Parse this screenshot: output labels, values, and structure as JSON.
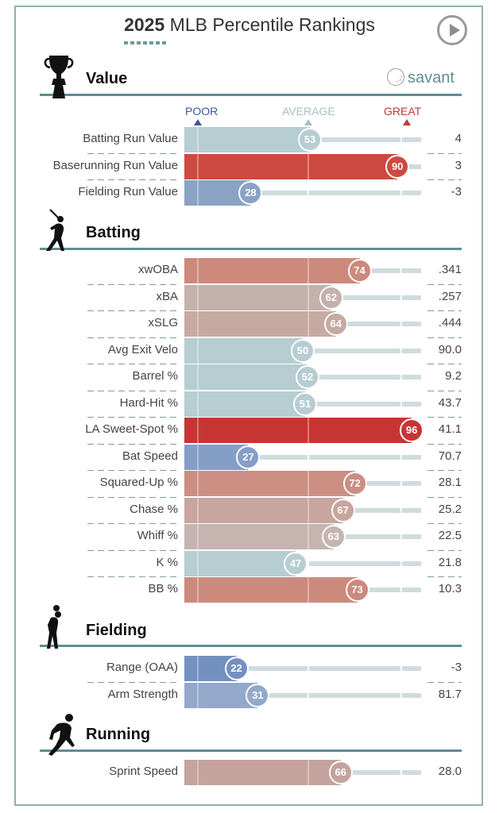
{
  "header": {
    "title_year": "2025",
    "title_rest": " MLB Percentile Rankings",
    "play_button": "play-icon",
    "brand": "savant"
  },
  "legend": {
    "poor": "POOR",
    "average": "AVERAGE",
    "great": "GREAT"
  },
  "colors": {
    "poor_label": "#3b5a9a",
    "average_label": "#a9bfc4",
    "great_label": "#c0393b",
    "section_rule": "#5e8e92"
  },
  "chart_data": {
    "type": "bar",
    "title": "2025 MLB Percentile Rankings",
    "xlabel": "Percentile",
    "xlim": [
      0,
      100
    ],
    "legend": [
      "POOR",
      "AVERAGE",
      "GREAT"
    ],
    "sections": [
      {
        "name": "Value",
        "icon": "trophy-icon",
        "metrics": [
          {
            "label": "Batting Run Value",
            "percentile": 53,
            "value": "4",
            "color": "#b6cdd1"
          },
          {
            "label": "Baserunning Run Value",
            "percentile": 90,
            "value": "3",
            "color": "#cc4a40"
          },
          {
            "label": "Fielding Run Value",
            "percentile": 28,
            "value": "-3",
            "color": "#8aa2c4"
          }
        ]
      },
      {
        "name": "Batting",
        "icon": "batter-icon",
        "metrics": [
          {
            "label": "xwOBA",
            "percentile": 74,
            "value": ".341",
            "color": "#cd897c"
          },
          {
            "label": "xBA",
            "percentile": 62,
            "value": ".257",
            "color": "#c4b1ab"
          },
          {
            "label": "xSLG",
            "percentile": 64,
            "value": ".444",
            "color": "#c6aaa2"
          },
          {
            "label": "Avg Exit Velo",
            "percentile": 50,
            "value": "90.0",
            "color": "#b6cdd1"
          },
          {
            "label": "Barrel %",
            "percentile": 52,
            "value": "9.2",
            "color": "#b6cdd1"
          },
          {
            "label": "Hard-Hit %",
            "percentile": 51,
            "value": "43.7",
            "color": "#b6cdd1"
          },
          {
            "label": "LA Sweet-Spot %",
            "percentile": 96,
            "value": "41.1",
            "color": "#c73533"
          },
          {
            "label": "Bat Speed",
            "percentile": 27,
            "value": "70.7",
            "color": "#849ec6"
          },
          {
            "label": "Squared-Up %",
            "percentile": 72,
            "value": "28.1",
            "color": "#cc8e83"
          },
          {
            "label": "Chase %",
            "percentile": 67,
            "value": "25.2",
            "color": "#c8a59e"
          },
          {
            "label": "Whiff %",
            "percentile": 63,
            "value": "22.5",
            "color": "#c6b4b0"
          },
          {
            "label": "K %",
            "percentile": 47,
            "value": "21.8",
            "color": "#b6cdd1"
          },
          {
            "label": "BB %",
            "percentile": 73,
            "value": "10.3",
            "color": "#cc8a7d"
          }
        ]
      },
      {
        "name": "Fielding",
        "icon": "fielder-icon",
        "metrics": [
          {
            "label": "Range (OAA)",
            "percentile": 22,
            "value": "-3",
            "color": "#7490c0"
          },
          {
            "label": "Arm Strength",
            "percentile": 31,
            "value": "81.7",
            "color": "#93a9c9"
          }
        ]
      },
      {
        "name": "Running",
        "icon": "runner-icon",
        "metrics": [
          {
            "label": "Sprint Speed",
            "percentile": 66,
            "value": "28.0",
            "color": "#c4a39c"
          }
        ]
      }
    ]
  }
}
